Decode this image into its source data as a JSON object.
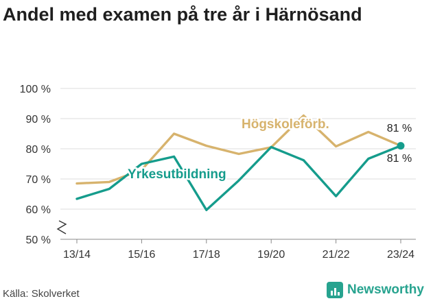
{
  "title": "Andel med examen på tre år i Härnösand",
  "source": "Källa: Skolverket",
  "brand": {
    "name": "Newsworthy",
    "icon": "bar-chart-icon",
    "color": "#27a38f"
  },
  "chart_data": {
    "type": "line",
    "title": "Andel med examen på tre år i Härnösand",
    "xlabel": "",
    "ylabel": "",
    "x": [
      "13/14",
      "14/15",
      "15/16",
      "16/17",
      "17/18",
      "18/19",
      "19/20",
      "20/21",
      "21/22",
      "22/23",
      "23/24"
    ],
    "xticks": [
      "13/14",
      "15/16",
      "17/18",
      "19/20",
      "21/22",
      "23/24"
    ],
    "yticks": [
      50,
      60,
      70,
      80,
      90,
      100
    ],
    "ytick_labels": [
      "50 %",
      "60 %",
      "70 %",
      "80 %",
      "90 %",
      "100 %"
    ],
    "ylim": [
      50,
      100
    ],
    "axis_break": true,
    "grid": true,
    "series": [
      {
        "name": "Högskoleförb.",
        "color": "#d7b36d",
        "values": [
          68.5,
          69,
          73,
          85,
          81,
          78.3,
          80.5,
          91,
          80.8,
          85.6,
          81
        ]
      },
      {
        "name": "Yrkesutbildning",
        "color": "#159c8c",
        "values": [
          63.4,
          66.7,
          75,
          77.4,
          59.7,
          69.5,
          80.6,
          76.2,
          64.3,
          76.7,
          81
        ]
      }
    ],
    "end_labels": [
      "81 %",
      "81 %"
    ]
  }
}
